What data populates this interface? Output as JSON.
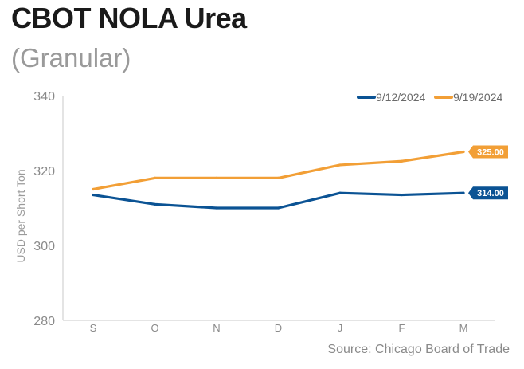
{
  "chart_data": {
    "type": "line",
    "title": "CBOT NOLA Urea",
    "subtitle": "(Granular)",
    "ylabel": "USD per Short Ton",
    "xlabel": "",
    "ylim": [
      280,
      340
    ],
    "yticks": [
      280,
      300,
      320,
      340
    ],
    "categories": [
      "S",
      "O",
      "N",
      "D",
      "J",
      "F",
      "M"
    ],
    "series": [
      {
        "name": "9/12/2024",
        "color": "#0b5394",
        "values": [
          313.5,
          311,
          310,
          310,
          314,
          313.5,
          314
        ],
        "end_label": "314.00"
      },
      {
        "name": "9/19/2024",
        "color": "#f29f36",
        "values": [
          315,
          318,
          318,
          318,
          321.5,
          322.5,
          325
        ],
        "end_label": "325.00"
      }
    ],
    "legend": "top-right",
    "source": "Source: Chicago Board of Trade"
  }
}
